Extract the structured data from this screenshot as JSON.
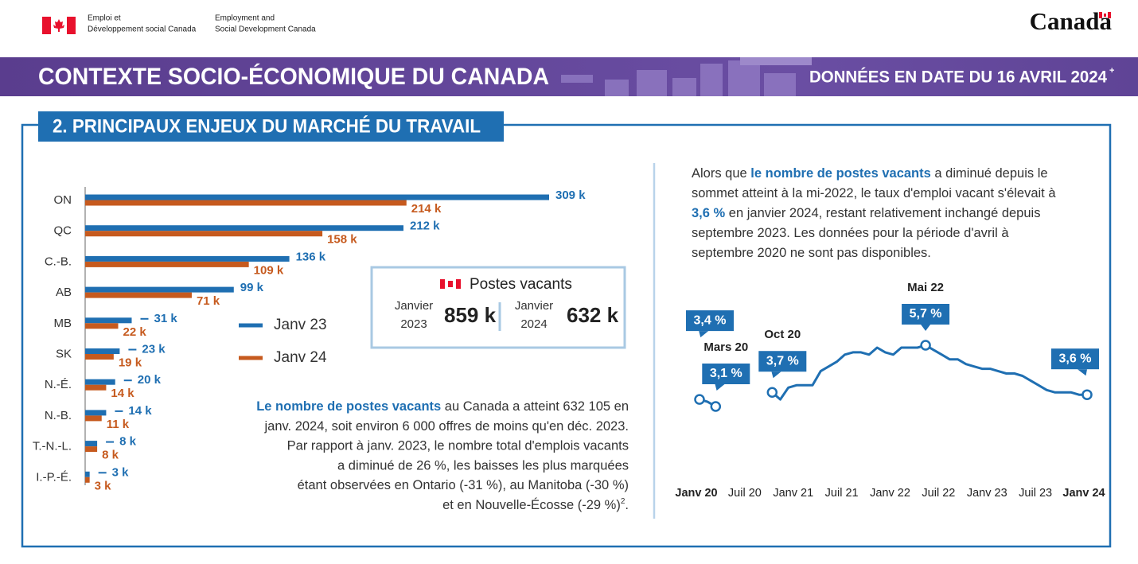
{
  "header": {
    "department_fr": [
      "Emploi et",
      "Développement social Canada"
    ],
    "department_en": [
      "Employment and",
      "Social Development Canada"
    ],
    "wordmark": "Canada"
  },
  "banner": {
    "title": "CONTEXTE SOCIO-ÉCONOMIQUE DU CANADA",
    "date": "DONNÉES EN DATE DU 16 AVRIL 2024",
    "date_mark": "+"
  },
  "section": {
    "title": "2. PRINCIPAUX ENJEUX DU MARCHÉ DU TRAVAIL"
  },
  "summary": {
    "title": "Postes vacants",
    "items": [
      {
        "period": [
          "Janvier",
          "2023"
        ],
        "value": "859 k"
      },
      {
        "period": [
          "Janvier",
          "2024"
        ],
        "value": "632 k"
      }
    ]
  },
  "note_left": {
    "lines": [
      [
        {
          "text": "Le nombre de postes vacants",
          "bold": true
        },
        {
          "text": " au Canada a atteint 632 105 en"
        }
      ],
      [
        {
          "text": "janv. 2024, soit environ 6 000 offres de moins qu'en déc. 2023."
        }
      ],
      [
        {
          "text": "Par rapport à janv. 2023, le nombre total d'emplois vacants"
        }
      ],
      [
        {
          "text": "a diminué de 26 %, les baisses les plus marquées"
        }
      ],
      [
        {
          "text": "étant observées en Ontario (-31 %), au Manitoba (-30 %)"
        }
      ],
      [
        {
          "text": "et en Nouvelle-Écosse (-29 %)"
        },
        {
          "text": "2",
          "sup": true
        },
        {
          "text": "."
        }
      ]
    ]
  },
  "note_right": {
    "lines": [
      [
        {
          "text": "Alors que "
        },
        {
          "text": "le nombre de postes vacants",
          "bold": true
        },
        {
          "text": " a diminué depuis le"
        }
      ],
      [
        {
          "text": "sommet atteint à la mi-2022, le taux d'emploi vacant s'élevait à"
        }
      ],
      [
        {
          "text": "3,6 %",
          "bold": true
        },
        {
          "text": " en janvier 2024, restant relativement inchangé depuis"
        }
      ],
      [
        {
          "text": "septembre 2023. Les données pour la période d'avril à"
        }
      ],
      [
        {
          "text": "septembre 2020 ne sont pas disponibles."
        }
      ]
    ]
  },
  "chart_data": [
    {
      "type": "bar",
      "orientation": "horizontal",
      "categories": [
        "ON",
        "QC",
        "C.-B.",
        "AB",
        "MB",
        "SK",
        "N.-É.",
        "N.-B.",
        "T.-N.-L.",
        "I.-P.-É."
      ],
      "series": [
        {
          "name": "Janv 23",
          "color": "#1f6fb2",
          "values": [
            309,
            212,
            136,
            99,
            31,
            23,
            20,
            14,
            8,
            3
          ],
          "value_labels": [
            "309 k",
            "212 k",
            "136 k",
            "99 k",
            "31 k",
            "23 k",
            "20 k",
            "14 k",
            "8 k",
            "3 k"
          ]
        },
        {
          "name": "Janv 24",
          "color": "#c65a1e",
          "values": [
            214,
            158,
            109,
            71,
            22,
            19,
            14,
            11,
            8,
            3
          ],
          "value_labels": [
            "214 k",
            "158 k",
            "109 k",
            "71 k",
            "22 k",
            "19 k",
            "14 k",
            "11 k",
            "8 k",
            "3 k"
          ]
        }
      ]
    },
    {
      "type": "line",
      "categories": [
        "Janv 20",
        null,
        null,
        null,
        null,
        null,
        "Juil 20",
        null,
        null,
        null,
        null,
        null,
        "Janv 21",
        null,
        null,
        null,
        null,
        null,
        "Juil 21",
        null,
        null,
        null,
        null,
        null,
        "Janv 22",
        null,
        null,
        null,
        null,
        null,
        "Juil 22",
        null,
        null,
        null,
        null,
        null,
        "Janv 23",
        null,
        null,
        null,
        null,
        null,
        "Juil 23",
        null,
        null,
        null,
        null,
        null,
        "Janv 24"
      ],
      "series": [
        {
          "color": "#1f6fb2",
          "values": [
            3.4,
            3.3,
            3.1,
            null,
            null,
            null,
            null,
            null,
            null,
            3.7,
            3.4,
            3.9,
            4.0,
            4.0,
            4.0,
            4.6,
            4.8,
            5.0,
            5.3,
            5.4,
            5.4,
            5.3,
            5.6,
            5.4,
            5.3,
            5.6,
            5.6,
            5.6,
            5.7,
            5.5,
            5.3,
            5.1,
            5.1,
            4.9,
            4.8,
            4.7,
            4.7,
            4.6,
            4.5,
            4.5,
            4.4,
            4.2,
            4.0,
            3.8,
            3.7,
            3.7,
            3.7,
            3.6,
            3.6
          ],
          "value_labels": [
            "3,4 %",
            null,
            "3,1 %",
            null,
            null,
            null,
            null,
            null,
            null,
            "3,7 %",
            null,
            null,
            null,
            null,
            null,
            null,
            null,
            null,
            null,
            null,
            null,
            null,
            null,
            null,
            null,
            null,
            null,
            null,
            "5,7 %",
            null,
            null,
            null,
            null,
            null,
            null,
            null,
            null,
            null,
            null,
            null,
            null,
            null,
            null,
            null,
            null,
            null,
            null,
            null,
            "3,6 %"
          ],
          "point_labels": [
            null,
            null,
            "Mars 20",
            null,
            null,
            null,
            null,
            null,
            null,
            "Oct 20",
            null,
            null,
            null,
            null,
            null,
            null,
            null,
            null,
            null,
            null,
            null,
            null,
            null,
            null,
            null,
            null,
            null,
            null,
            "Mai 22",
            null,
            null,
            null,
            null,
            null,
            null,
            null,
            null,
            null,
            null,
            null,
            null,
            null,
            null,
            null,
            null,
            null,
            null,
            null,
            null
          ]
        }
      ]
    }
  ]
}
